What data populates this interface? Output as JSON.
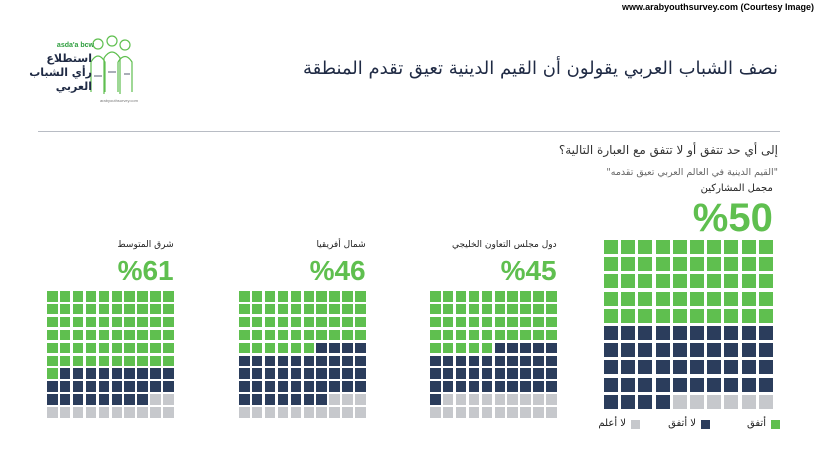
{
  "credit": "www.arabyouthsurvey.com (Courtesy Image)",
  "logo": {
    "brand": "asda'a bcw",
    "line1": "استطلاع",
    "line2": "رأي الشباب",
    "line3": "العربي",
    "url": "arabyouthsurvey.com"
  },
  "title": "نصف الشباب العربي يقولون أن القيم الدينية تعيق تقدم المنطقة",
  "question": "إلى أي حد تتفق أو لا تتفق مع العبارة التالية؟",
  "statement": "\"القيم الدينية في العالم العربي تعيق تقدمه\"",
  "colors": {
    "agree": "#5fbf4f",
    "disagree": "#2b3d5c",
    "dont_know": "#c6c8cc"
  },
  "chart_data": {
    "type": "waffle",
    "legend": [
      "أتفق",
      "لا أتفق",
      "لا أعلم"
    ],
    "panels": [
      {
        "name": "مجمل المشاركين",
        "label_pct": "%50",
        "agree": 50,
        "disagree": 44,
        "dont_know": 6
      },
      {
        "name": "دول مجلس التعاون الخليجي",
        "label_pct": "%45",
        "agree": 45,
        "disagree": 36,
        "dont_know": 19
      },
      {
        "name": "شمال أفريقيا",
        "label_pct": "%46",
        "agree": 46,
        "disagree": 41,
        "dont_know": 13
      },
      {
        "name": "شرق المتوسط",
        "label_pct": "%61",
        "agree": 61,
        "disagree": 27,
        "dont_know": 12
      }
    ]
  }
}
